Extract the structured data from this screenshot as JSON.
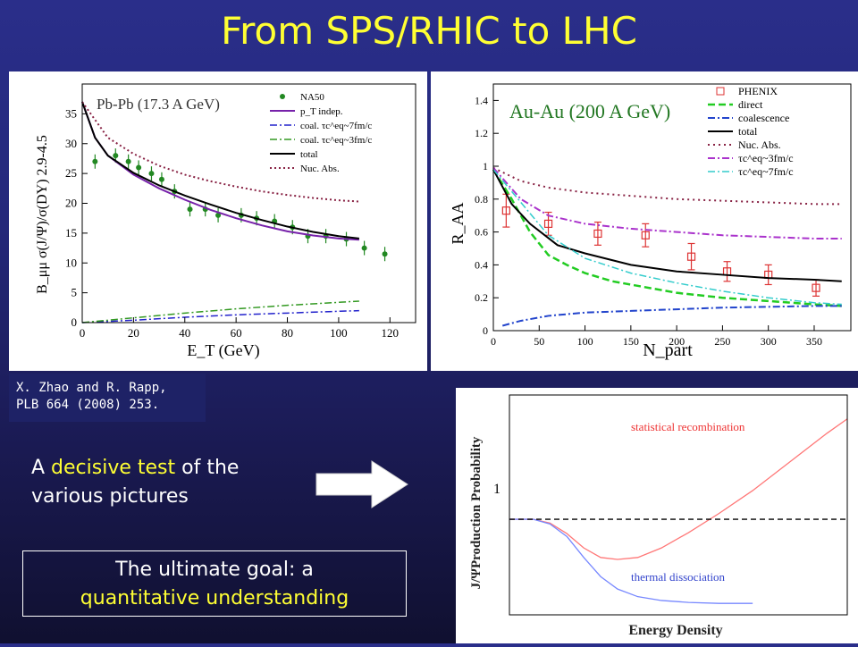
{
  "slide": {
    "title": "From SPS/RHIC to LHC",
    "citation_line1": "X. Zhao and R. Rapp,",
    "citation_line2": "PLB 664 (2008) 253.",
    "test_text_1": "A ",
    "test_text_highlight": "decisive test",
    "test_text_2": " of the various pictures",
    "goal_line1": "The ultimate goal: a",
    "goal_line2": "quantitative understanding",
    "colors": {
      "title": "#ffff33",
      "background": "#24287a",
      "highlight": "#ffff33"
    }
  },
  "chart_data": [
    {
      "type": "line",
      "title": "Pb-Pb (17.3 A GeV)",
      "xlabel": "E_T (GeV)",
      "ylabel": "B_μμ σ(J/Ψ)/σ(DY) 2.9-4.5",
      "xlim": [
        0,
        130
      ],
      "ylim": [
        0,
        40
      ],
      "xticks": [
        0,
        20,
        40,
        60,
        80,
        100,
        120
      ],
      "yticks": [
        0,
        5,
        10,
        15,
        20,
        25,
        30,
        35
      ],
      "legend_position": "top-right",
      "series": [
        {
          "name": "NA50",
          "style": "points",
          "color": "#228822",
          "x": [
            5,
            13,
            18,
            22,
            27,
            31,
            36,
            42,
            48,
            53,
            62,
            68,
            75,
            82,
            88,
            95,
            103,
            110,
            118
          ],
          "y": [
            27,
            28,
            27,
            26,
            25,
            24,
            22,
            19,
            19,
            18,
            18,
            17.5,
            17,
            16,
            14.5,
            14.5,
            14,
            12.5,
            11.5
          ]
        },
        {
          "name": "p_T indep.",
          "color": "#7722aa",
          "dash": "none",
          "width": 2,
          "x": [
            0,
            5,
            10,
            20,
            30,
            40,
            50,
            60,
            70,
            80,
            90,
            100,
            108
          ],
          "y": [
            37,
            31,
            28,
            24.8,
            22.5,
            20.6,
            18.9,
            17.5,
            16.3,
            15.3,
            14.6,
            14.1,
            13.9
          ]
        },
        {
          "name": "coal. τc^eq~7fm/c",
          "color": "#2222cc",
          "dash": "8 3 2 3",
          "width": 1.5,
          "x": [
            0,
            20,
            40,
            60,
            80,
            100,
            108
          ],
          "y": [
            0,
            0.4,
            0.9,
            1.3,
            1.6,
            1.9,
            2.0
          ]
        },
        {
          "name": "coal. τc^eq~3fm/c",
          "color": "#339922",
          "dash": "8 3 2 3",
          "width": 1.5,
          "x": [
            0,
            20,
            40,
            60,
            80,
            100,
            108
          ],
          "y": [
            0,
            0.8,
            1.6,
            2.3,
            2.9,
            3.4,
            3.6
          ]
        },
        {
          "name": "total",
          "color": "#000000",
          "dash": "none",
          "width": 2,
          "x": [
            0,
            5,
            10,
            20,
            30,
            40,
            50,
            60,
            70,
            80,
            90,
            100,
            108
          ],
          "y": [
            37,
            31,
            28,
            25.1,
            23,
            21.3,
            19.8,
            18.4,
            17.2,
            16.1,
            15.2,
            14.5,
            14.1
          ]
        },
        {
          "name": "Nuc. Abs.",
          "color": "#882244",
          "dash": "2 3",
          "width": 2,
          "x": [
            0,
            10,
            20,
            30,
            40,
            50,
            60,
            70,
            80,
            90,
            100,
            108
          ],
          "y": [
            37,
            31,
            28.3,
            26.3,
            24.8,
            23.7,
            22.8,
            22,
            21.4,
            20.9,
            20.5,
            20.3
          ]
        }
      ]
    },
    {
      "type": "line",
      "title": "Au-Au (200 A GeV)",
      "xlabel": "N_part",
      "ylabel": "R_AA",
      "xlim": [
        0,
        390
      ],
      "ylim": [
        0,
        1.5
      ],
      "xticks": [
        0,
        50,
        100,
        150,
        200,
        250,
        300,
        350
      ],
      "yticks": [
        0,
        0.2,
        0.4,
        0.6,
        0.8,
        1,
        1.2,
        1.4
      ],
      "legend_position": "top-right",
      "series": [
        {
          "name": "PHENIX",
          "style": "points",
          "color": "#dd3333",
          "x": [
            14,
            60,
            114,
            166,
            216,
            255,
            300,
            352
          ],
          "y": [
            0.73,
            0.65,
            0.59,
            0.58,
            0.45,
            0.36,
            0.34,
            0.26
          ],
          "err": [
            0.1,
            0.07,
            0.07,
            0.07,
            0.08,
            0.06,
            0.06,
            0.05
          ]
        },
        {
          "name": "direct",
          "color": "#22cc22",
          "dash": "8 4",
          "width": 2.5,
          "x": [
            0,
            20,
            40,
            60,
            80,
            100,
            130,
            160,
            200,
            250,
            300,
            350,
            380
          ],
          "y": [
            0.98,
            0.8,
            0.6,
            0.46,
            0.4,
            0.35,
            0.3,
            0.27,
            0.23,
            0.2,
            0.18,
            0.16,
            0.15
          ]
        },
        {
          "name": "coalescence",
          "color": "#2244cc",
          "dash": "8 3 2 3",
          "width": 2,
          "x": [
            10,
            30,
            60,
            100,
            150,
            200,
            250,
            300,
            350,
            380
          ],
          "y": [
            0.03,
            0.06,
            0.09,
            0.11,
            0.12,
            0.13,
            0.14,
            0.145,
            0.15,
            0.15
          ]
        },
        {
          "name": "total",
          "color": "#000000",
          "dash": "none",
          "width": 2,
          "x": [
            0,
            20,
            40,
            70,
            100,
            150,
            200,
            250,
            300,
            350,
            380
          ],
          "y": [
            0.98,
            0.77,
            0.65,
            0.52,
            0.47,
            0.4,
            0.36,
            0.34,
            0.32,
            0.31,
            0.3
          ]
        },
        {
          "name": "Nuc. Abs.",
          "color": "#882244",
          "dash": "2 4",
          "width": 2,
          "x": [
            0,
            30,
            60,
            100,
            150,
            200,
            250,
            300,
            350,
            380
          ],
          "y": [
            0.99,
            0.91,
            0.87,
            0.84,
            0.82,
            0.8,
            0.79,
            0.78,
            0.77,
            0.77
          ]
        },
        {
          "name": "τc^eq~3fm/c",
          "color": "#aa33cc",
          "dash": "8 3 2 3",
          "width": 2,
          "x": [
            0,
            30,
            60,
            100,
            150,
            200,
            250,
            300,
            350,
            380
          ],
          "y": [
            0.99,
            0.8,
            0.7,
            0.65,
            0.62,
            0.6,
            0.58,
            0.57,
            0.56,
            0.56
          ]
        },
        {
          "name": "τc^eq~7fm/c",
          "color": "#33cccc",
          "dash": "8 3 2 3",
          "width": 1.5,
          "x": [
            0,
            30,
            60,
            100,
            150,
            200,
            250,
            300,
            350,
            380
          ],
          "y": [
            0.98,
            0.78,
            0.58,
            0.44,
            0.35,
            0.29,
            0.24,
            0.2,
            0.17,
            0.16
          ]
        }
      ]
    },
    {
      "type": "line",
      "xlabel": "Energy Density",
      "ylabel": "J/ΨProduction Probability",
      "ytick_label": "1",
      "ylim": [
        0,
        2.3
      ],
      "xlim": [
        0,
        10
      ],
      "series": [
        {
          "name": "statistical recombination",
          "color": "#ff7777",
          "x": [
            0,
            0.7,
            1.2,
            1.7,
            2.2,
            2.7,
            3.2,
            3.8,
            4.5,
            5.3,
            6.2,
            7.2,
            8.3,
            9.4,
            10
          ],
          "y": [
            1,
            1,
            0.96,
            0.85,
            0.7,
            0.6,
            0.58,
            0.6,
            0.7,
            0.86,
            1.06,
            1.3,
            1.6,
            1.9,
            2.05
          ]
        },
        {
          "name": "thermal dissociation",
          "color": "#7788ff",
          "x": [
            0,
            0.7,
            1.2,
            1.7,
            2.2,
            2.7,
            3.2,
            3.8,
            4.5,
            5.3,
            6.2,
            7.2
          ],
          "y": [
            1,
            1,
            0.95,
            0.82,
            0.6,
            0.4,
            0.27,
            0.19,
            0.15,
            0.13,
            0.12,
            0.12
          ]
        }
      ],
      "reference_line": {
        "y": 1,
        "style": "dashed",
        "color": "#000000"
      }
    }
  ]
}
